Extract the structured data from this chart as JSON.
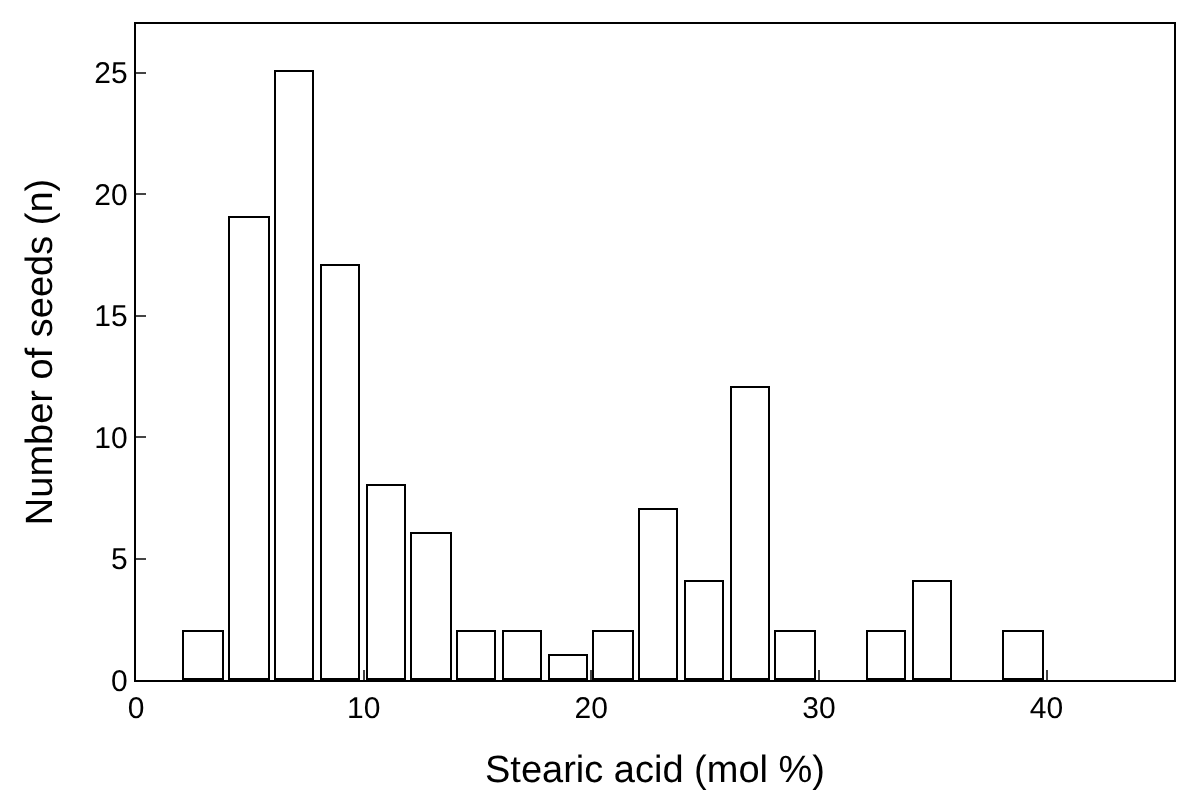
{
  "chart_data": {
    "type": "bar",
    "xlabel": "Stearic acid (mol %)",
    "ylabel": "Number of seeds (n)",
    "x": [
      3,
      5,
      7,
      9,
      11,
      13,
      15,
      17,
      19,
      21,
      23,
      25,
      27,
      29,
      31,
      33,
      35,
      37,
      39
    ],
    "values": [
      2,
      19,
      25,
      17,
      8,
      6,
      2,
      2,
      1,
      2,
      7,
      4,
      12,
      2,
      0,
      2,
      4,
      0,
      2
    ],
    "color": "#ffffff",
    "xlim": [
      0,
      45.6
    ],
    "xticks": [
      0,
      10,
      20,
      30,
      40
    ],
    "ylim": [
      0,
      27
    ],
    "yticks": [
      0,
      5,
      10,
      15,
      20,
      25
    ],
    "legend": false
  }
}
